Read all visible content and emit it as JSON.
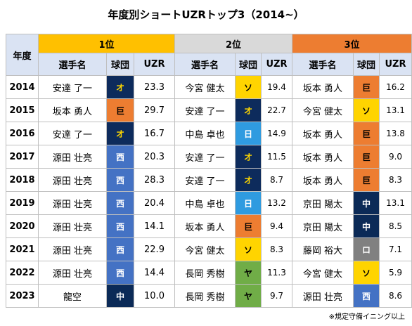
{
  "title": "年度別ショートUZRトップ3（2014~）",
  "header": {
    "year": "年度",
    "ranks": [
      "1位",
      "2位",
      "3位"
    ],
    "player": "選手名",
    "team": "球団",
    "uzr": "UZR"
  },
  "rows": [
    {
      "year": "2014",
      "r1": {
        "name": "安達 了一",
        "team": "オ",
        "uzr": "23.3"
      },
      "r2": {
        "name": "今宮 健太",
        "team": "ソ",
        "uzr": "19.4"
      },
      "r3": {
        "name": "坂本 勇人",
        "team": "巨",
        "uzr": "16.2"
      }
    },
    {
      "year": "2015",
      "r1": {
        "name": "坂本 勇人",
        "team": "巨",
        "uzr": "29.7"
      },
      "r2": {
        "name": "安達 了一",
        "team": "オ",
        "uzr": "22.7"
      },
      "r3": {
        "name": "今宮 健太",
        "team": "ソ",
        "uzr": "13.1"
      }
    },
    {
      "year": "2016",
      "r1": {
        "name": "安達 了一",
        "team": "オ",
        "uzr": "16.7"
      },
      "r2": {
        "name": "中島 卓也",
        "team": "日",
        "uzr": "14.9"
      },
      "r3": {
        "name": "坂本 勇人",
        "team": "巨",
        "uzr": "13.8"
      }
    },
    {
      "year": "2017",
      "r1": {
        "name": "源田 壮亮",
        "team": "西",
        "uzr": "20.3"
      },
      "r2": {
        "name": "安達 了一",
        "team": "オ",
        "uzr": "11.5"
      },
      "r3": {
        "name": "坂本 勇人",
        "team": "巨",
        "uzr": "9.0"
      }
    },
    {
      "year": "2018",
      "r1": {
        "name": "源田 壮亮",
        "team": "西",
        "uzr": "28.3"
      },
      "r2": {
        "name": "安達 了一",
        "team": "オ",
        "uzr": "8.7"
      },
      "r3": {
        "name": "坂本 勇人",
        "team": "巨",
        "uzr": "8.3"
      }
    },
    {
      "year": "2019",
      "r1": {
        "name": "源田 壮亮",
        "team": "西",
        "uzr": "20.4"
      },
      "r2": {
        "name": "中島 卓也",
        "team": "日",
        "uzr": "13.2"
      },
      "r3": {
        "name": "京田 陽太",
        "team": "中",
        "uzr": "13.1"
      }
    },
    {
      "year": "2020",
      "r1": {
        "name": "源田 壮亮",
        "team": "西",
        "uzr": "14.1"
      },
      "r2": {
        "name": "坂本 勇人",
        "team": "巨",
        "uzr": "9.4"
      },
      "r3": {
        "name": "京田 陽太",
        "team": "中",
        "uzr": "8.5"
      }
    },
    {
      "year": "2021",
      "r1": {
        "name": "源田 壮亮",
        "team": "西",
        "uzr": "22.9"
      },
      "r2": {
        "name": "今宮 健太",
        "team": "ソ",
        "uzr": "8.3"
      },
      "r3": {
        "name": "藤岡 裕大",
        "team": "ロ",
        "uzr": "7.1"
      }
    },
    {
      "year": "2022",
      "r1": {
        "name": "源田 壮亮",
        "team": "西",
        "uzr": "14.4"
      },
      "r2": {
        "name": "長岡 秀樹",
        "team": "ヤ",
        "uzr": "11.3"
      },
      "r3": {
        "name": "今宮 健太",
        "team": "ソ",
        "uzr": "5.9"
      }
    },
    {
      "year": "2023",
      "r1": {
        "name": "龍空",
        "team": "中",
        "uzr": "10.0"
      },
      "r2": {
        "name": "長岡 秀樹",
        "team": "ヤ",
        "uzr": "9.7"
      },
      "r3": {
        "name": "源田 壮亮",
        "team": "西",
        "uzr": "8.6"
      }
    }
  ],
  "team_colors": {
    "オ": "#0d2b5c",
    "巨": "#ed7d31",
    "ソ": "#ffd400",
    "日": "#2f9be0",
    "西": "#4472c4",
    "中": "#0b2a57",
    "ロ": "#808080",
    "ヤ": "#70ad47"
  },
  "rank_colors": {
    "1位": "#ffc000",
    "2位": "#d9d9d9",
    "3位": "#ed7d31"
  },
  "note": "※規定守備イニング以上",
  "chart_data": {
    "type": "table",
    "title": "年度別ショートUZRトップ3（2014~）",
    "columns": [
      "年度",
      "1位 選手名",
      "1位 球団",
      "1位 UZR",
      "2位 選手名",
      "2位 球団",
      "2位 UZR",
      "3位 選手名",
      "3位 球団",
      "3位 UZR"
    ],
    "rows": [
      [
        "2014",
        "安達 了一",
        "オ",
        23.3,
        "今宮 健太",
        "ソ",
        19.4,
        "坂本 勇人",
        "巨",
        16.2
      ],
      [
        "2015",
        "坂本 勇人",
        "巨",
        29.7,
        "安達 了一",
        "オ",
        22.7,
        "今宮 健太",
        "ソ",
        13.1
      ],
      [
        "2016",
        "安達 了一",
        "オ",
        16.7,
        "中島 卓也",
        "日",
        14.9,
        "坂本 勇人",
        "巨",
        13.8
      ],
      [
        "2017",
        "源田 壮亮",
        "西",
        20.3,
        "安達 了一",
        "オ",
        11.5,
        "坂本 勇人",
        "巨",
        9.0
      ],
      [
        "2018",
        "源田 壮亮",
        "西",
        28.3,
        "安達 了一",
        "オ",
        8.7,
        "坂本 勇人",
        "巨",
        8.3
      ],
      [
        "2019",
        "源田 壮亮",
        "西",
        20.4,
        "中島 卓也",
        "日",
        13.2,
        "京田 陽太",
        "中",
        13.1
      ],
      [
        "2020",
        "源田 壮亮",
        "西",
        14.1,
        "坂本 勇人",
        "巨",
        9.4,
        "京田 陽太",
        "中",
        8.5
      ],
      [
        "2021",
        "源田 壮亮",
        "西",
        22.9,
        "今宮 健太",
        "ソ",
        8.3,
        "藤岡 裕大",
        "ロ",
        7.1
      ],
      [
        "2022",
        "源田 壮亮",
        "西",
        14.4,
        "長岡 秀樹",
        "ヤ",
        11.3,
        "今宮 健太",
        "ソ",
        5.9
      ],
      [
        "2023",
        "龍空",
        "中",
        10.0,
        "長岡 秀樹",
        "ヤ",
        9.7,
        "源田 壮亮",
        "西",
        8.6
      ]
    ]
  }
}
